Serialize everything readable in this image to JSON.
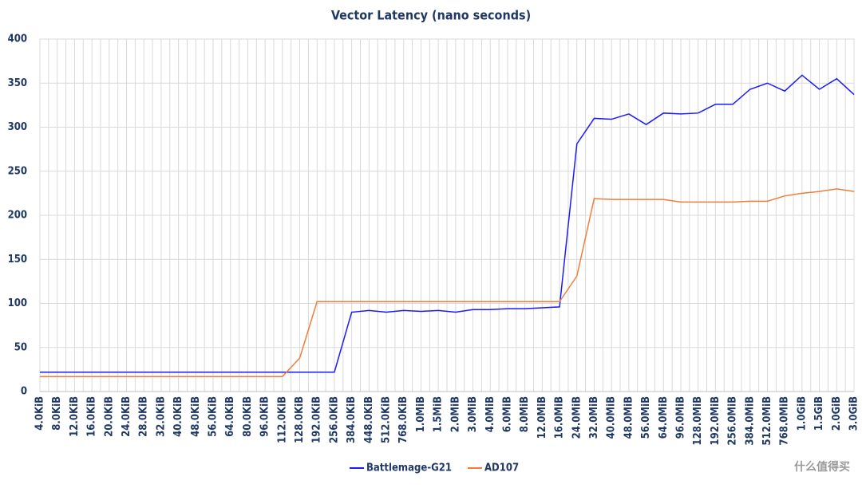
{
  "chart_data": {
    "type": "line",
    "title": "Vector Latency (nano seconds)",
    "categories": [
      "4.0KiB",
      "8.0KiB",
      "12.0KiB",
      "16.0KiB",
      "20.0KiB",
      "24.0KiB",
      "28.0KiB",
      "32.0KiB",
      "40.0KiB",
      "48.0KiB",
      "56.0KiB",
      "64.0KiB",
      "80.0KiB",
      "96.0KiB",
      "112.0KiB",
      "128.0KiB",
      "192.0KiB",
      "256.0KiB",
      "384.0KiB",
      "448.0KiB",
      "512.0KiB",
      "768.0KiB",
      "1.0MiB",
      "1.5MiB",
      "2.0MiB",
      "3.0MiB",
      "4.0MiB",
      "6.0MiB",
      "8.0MiB",
      "12.0MiB",
      "16.0MiB",
      "24.0MiB",
      "32.0MiB",
      "40.0MiB",
      "48.0MiB",
      "56.0MiB",
      "64.0MiB",
      "96.0MiB",
      "128.0MiB",
      "192.0MiB",
      "256.0MiB",
      "384.0MiB",
      "512.0MiB",
      "768.0MiB",
      "1.0GiB",
      "1.5GiB",
      "2.0GiB",
      "3.0GiB"
    ],
    "series": [
      {
        "name": "Battlemage-G21",
        "color": "#1a1aff",
        "values": [
          22,
          22,
          22,
          22,
          22,
          22,
          22,
          22,
          22,
          22,
          22,
          22,
          22,
          22,
          22,
          22,
          22,
          22,
          90,
          92,
          90,
          92,
          91,
          92,
          90,
          93,
          93,
          94,
          94,
          95,
          96,
          281,
          310,
          309,
          315,
          303,
          316,
          315,
          316,
          326,
          326,
          343,
          350,
          341,
          359,
          343,
          355,
          337
        ]
      },
      {
        "name": "AD107",
        "color": "#f07d3a",
        "values": [
          17,
          17,
          17,
          17,
          17,
          17,
          17,
          17,
          17,
          17,
          17,
          17,
          17,
          17,
          17,
          38,
          102,
          102,
          102,
          102,
          102,
          102,
          102,
          102,
          102,
          102,
          102,
          102,
          102,
          102,
          102,
          131,
          219,
          218,
          218,
          218,
          218,
          215,
          215,
          215,
          215,
          216,
          216,
          222,
          225,
          227,
          230,
          227
        ]
      }
    ],
    "ylim": [
      0,
      400
    ],
    "yticks": [
      0,
      50,
      100,
      150,
      200,
      250,
      300,
      350,
      400
    ],
    "grid": true,
    "legend": "bottom",
    "watermark": "什么值得买"
  }
}
